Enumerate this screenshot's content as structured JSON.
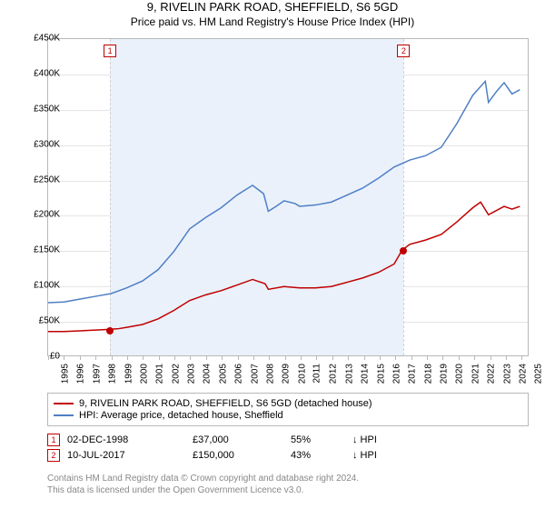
{
  "title": "9, RIVELIN PARK ROAD, SHEFFIELD, S6 5GD",
  "subtitle": "Price paid vs. HM Land Registry's House Price Index (HPI)",
  "chart": {
    "type": "line",
    "background_color": "#ffffff",
    "panel_border_color": "#b8b8b8",
    "grid_color": "#e5e5e5",
    "band_color": "#eaf1fb",
    "marker_dash_color": "#d0d0d0",
    "x_years": [
      1995,
      1996,
      1997,
      1998,
      1999,
      2000,
      2001,
      2002,
      2003,
      2004,
      2005,
      2006,
      2007,
      2008,
      2009,
      2010,
      2011,
      2012,
      2013,
      2014,
      2015,
      2016,
      2017,
      2018,
      2019,
      2020,
      2021,
      2022,
      2023,
      2024,
      2025
    ],
    "xlim": [
      1995,
      2025.5
    ],
    "ylim": [
      0,
      450000
    ],
    "ytick_step": 50000,
    "y_prefix": "£",
    "y_suffix": "K",
    "label_fontsize": 10,
    "line_width": 1.5,
    "series": [
      {
        "id": "property",
        "label": "9, RIVELIN PARK ROAD, SHEFFIELD, S6 5GD (detached house)",
        "color": "#c00000",
        "points": [
          [
            1995,
            34000
          ],
          [
            1996,
            34000
          ],
          [
            1997,
            35000
          ],
          [
            1998,
            36000
          ],
          [
            1998.92,
            37000
          ],
          [
            1999.5,
            38000
          ],
          [
            2000,
            40000
          ],
          [
            2001,
            44000
          ],
          [
            2002,
            52000
          ],
          [
            2003,
            64000
          ],
          [
            2004,
            78000
          ],
          [
            2005,
            86000
          ],
          [
            2006,
            92000
          ],
          [
            2007,
            100000
          ],
          [
            2008,
            108000
          ],
          [
            2008.8,
            102000
          ],
          [
            2009,
            94000
          ],
          [
            2010,
            98000
          ],
          [
            2011,
            96000
          ],
          [
            2012,
            96000
          ],
          [
            2013,
            98000
          ],
          [
            2014,
            104000
          ],
          [
            2015,
            110000
          ],
          [
            2016,
            118000
          ],
          [
            2017,
            130000
          ],
          [
            2017.52,
            150000
          ],
          [
            2018,
            158000
          ],
          [
            2019,
            164000
          ],
          [
            2020,
            172000
          ],
          [
            2021,
            190000
          ],
          [
            2022,
            210000
          ],
          [
            2022.5,
            218000
          ],
          [
            2023,
            200000
          ],
          [
            2023.5,
            206000
          ],
          [
            2024,
            212000
          ],
          [
            2024.5,
            208000
          ],
          [
            2025,
            212000
          ]
        ]
      },
      {
        "id": "hpi",
        "label": "HPI: Average price, detached house, Sheffield",
        "color": "#4f7fc4",
        "points": [
          [
            1995,
            75000
          ],
          [
            1996,
            76000
          ],
          [
            1997,
            80000
          ],
          [
            1998,
            84000
          ],
          [
            1999,
            88000
          ],
          [
            2000,
            96000
          ],
          [
            2001,
            106000
          ],
          [
            2002,
            122000
          ],
          [
            2003,
            148000
          ],
          [
            2004,
            180000
          ],
          [
            2005,
            196000
          ],
          [
            2006,
            210000
          ],
          [
            2007,
            228000
          ],
          [
            2008,
            242000
          ],
          [
            2008.7,
            230000
          ],
          [
            2009,
            205000
          ],
          [
            2009.5,
            212000
          ],
          [
            2010,
            220000
          ],
          [
            2010.7,
            216000
          ],
          [
            2011,
            212000
          ],
          [
            2012,
            214000
          ],
          [
            2013,
            218000
          ],
          [
            2014,
            228000
          ],
          [
            2015,
            238000
          ],
          [
            2016,
            252000
          ],
          [
            2017,
            268000
          ],
          [
            2018,
            278000
          ],
          [
            2019,
            284000
          ],
          [
            2020,
            296000
          ],
          [
            2021,
            330000
          ],
          [
            2022,
            370000
          ],
          [
            2022.8,
            390000
          ],
          [
            2023,
            360000
          ],
          [
            2023.5,
            375000
          ],
          [
            2024,
            388000
          ],
          [
            2024.5,
            372000
          ],
          [
            2025,
            378000
          ]
        ]
      }
    ],
    "sale_markers": [
      {
        "idx": "1",
        "year": 1998.92,
        "price": 37000,
        "color": "#c00000"
      },
      {
        "idx": "2",
        "year": 2017.52,
        "price": 150000,
        "color": "#c00000"
      }
    ],
    "owned_band": {
      "from": 1998.92,
      "to": 2017.52
    }
  },
  "legend_border_color": "#b8b8b8",
  "sales": [
    {
      "idx": "1",
      "date": "02-DEC-1998",
      "price": "£37,000",
      "pct": "55%",
      "arrow": "↓",
      "vs": "HPI",
      "color": "#c00000"
    },
    {
      "idx": "2",
      "date": "10-JUL-2017",
      "price": "£150,000",
      "pct": "43%",
      "arrow": "↓",
      "vs": "HPI",
      "color": "#c00000"
    }
  ],
  "footer_line1": "Contains HM Land Registry data © Crown copyright and database right 2024.",
  "footer_line2": "This data is licensed under the Open Government Licence v3.0."
}
